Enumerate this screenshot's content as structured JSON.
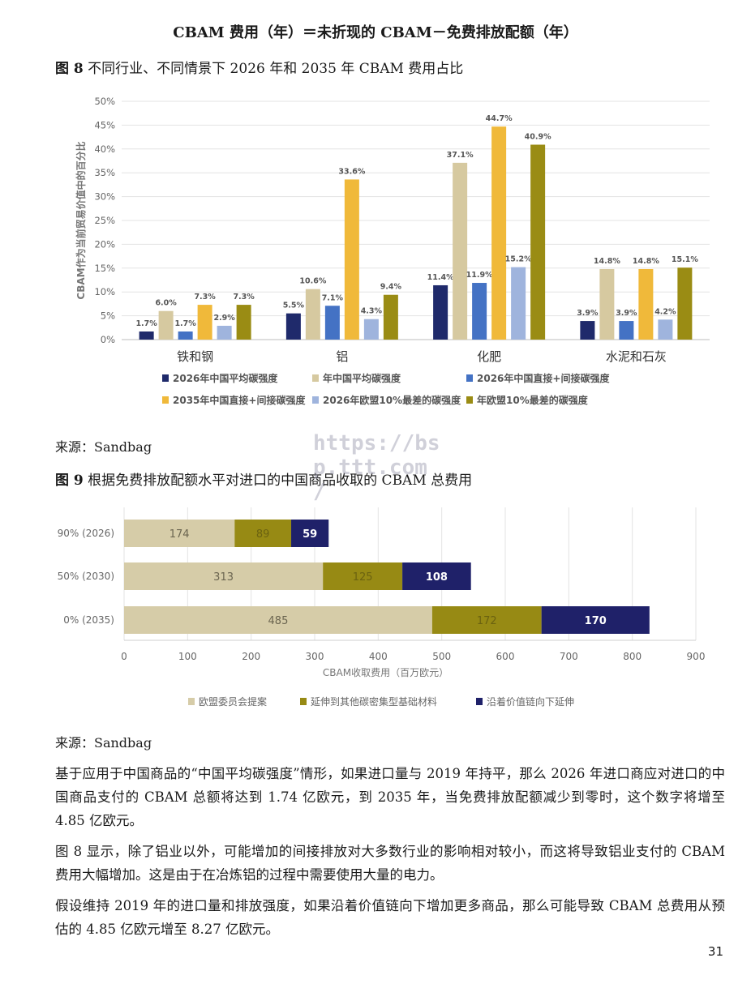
{
  "heading": "CBAM 费用（年）＝未折现的 CBAM－免费排放配额（年）",
  "figure8": {
    "label": "图 8",
    "caption": "不同行业、不同情景下 2026 年和 2035 年 CBAM 费用占比",
    "source": "来源：Sandbag"
  },
  "figure9": {
    "label": "图 9",
    "caption": "根据免费排放配额水平对进口的中国商品收取的 CBAM 总费用",
    "source": "来源：Sandbag"
  },
  "watermark": [
    "https://bs",
    "p.ttt.com",
    "/"
  ],
  "paragraphs": [
    "基于应用于中国商品的“中国平均碳强度”情形，如果进口量与 2019 年持平，那么 2026 年进口商应对进口的中国商品支付的 CBAM 总额将达到 1.74 亿欧元，到 2035 年，当免费排放配额减少到零时，这个数字将增至 4.85 亿欧元。",
    "图 8 显示，除了铝业以外，可能增加的间接排放对大多数行业的影响相对较小，而这将导致铝业支付的 CBAM 费用大幅增加。这是由于在冶炼铝的过程中需要使用大量的电力。",
    "假设维持 2019 年的进口量和排放强度，如果沿着价值链向下增加更多商品，那么可能导致 CBAM 总费用从预估的 4.85 亿欧元增至 8.27 亿欧元。"
  ],
  "page_number": "31",
  "chart_data": [
    {
      "type": "bar",
      "ylabel": "CBAM作为当前贸易价值中的百分比",
      "ylim": [
        0,
        50
      ],
      "yticks": [
        "0%",
        "5%",
        "10%",
        "15%",
        "20%",
        "25%",
        "30%",
        "35%",
        "40%",
        "45%",
        "50%"
      ],
      "categories": [
        "铁和钢",
        "铝",
        "化肥",
        "水泥和石灰"
      ],
      "grid": true,
      "legend_position": "bottom",
      "series": [
        {
          "name": "2026年中国平均碳强度",
          "values": [
            1.7,
            5.5,
            11.4,
            3.9
          ],
          "labels": [
            "1.7%",
            "5.5%",
            "11.4%",
            "3.9%"
          ],
          "color": "#1f2a6b"
        },
        {
          "name": "年中国平均碳强度",
          "values": [
            6.0,
            10.6,
            37.1,
            14.8
          ],
          "labels": [
            "6.0%",
            "10.6%",
            "37.1%",
            "14.8%"
          ],
          "color": "#d6c9a0"
        },
        {
          "name": "2026年中国直接+间接碳强度",
          "values": [
            1.7,
            7.1,
            11.9,
            3.9
          ],
          "labels": [
            "1.7%",
            "7.1%",
            "11.9%",
            "3.9%"
          ],
          "color": "#4472c4"
        },
        {
          "name": "2035年中国直接+间接碳强度",
          "values": [
            7.3,
            33.6,
            44.7,
            14.8
          ],
          "labels": [
            "7.3%",
            "33.6%",
            "44.7%",
            "14.8%"
          ],
          "color": "#f0b93a"
        },
        {
          "name": "2026年欧盟10%最差的碳强度",
          "values": [
            2.9,
            4.3,
            15.2,
            4.2
          ],
          "labels": [
            "2.9%",
            "4.3%",
            "15.2%",
            "4.2%"
          ],
          "color": "#9fb4dd"
        },
        {
          "name": "年欧盟10%最差的碳强度",
          "values": [
            7.3,
            9.4,
            40.9,
            15.1
          ],
          "labels": [
            "7.3%",
            "9.4%",
            "40.9%",
            "15.1%"
          ],
          "color": "#9a8c14"
        }
      ]
    },
    {
      "type": "bar",
      "orientation": "horizontal",
      "stacked": true,
      "xlabel": "CBAM收取费用（百万欧元）",
      "xlim": [
        0,
        900
      ],
      "xticks": [
        "0",
        "100",
        "200",
        "300",
        "400",
        "500",
        "600",
        "700",
        "800",
        "900"
      ],
      "categories": [
        "90% (2026)",
        "50% (2030)",
        "0% (2035)"
      ],
      "grid": true,
      "legend_position": "bottom",
      "series": [
        {
          "name": "欧盟委员会提案",
          "values": [
            174,
            313,
            485
          ],
          "color": "#d6cca8",
          "label_color": "#6b6550"
        },
        {
          "name": "延伸到其他碳密集型基础材料",
          "values": [
            89,
            125,
            172
          ],
          "color": "#978a14",
          "label_color": "#6b6210"
        },
        {
          "name": "沿着价值链向下延伸",
          "values": [
            59,
            108,
            170
          ],
          "color": "#1f2169",
          "label_color": "#ffffff"
        }
      ]
    }
  ]
}
